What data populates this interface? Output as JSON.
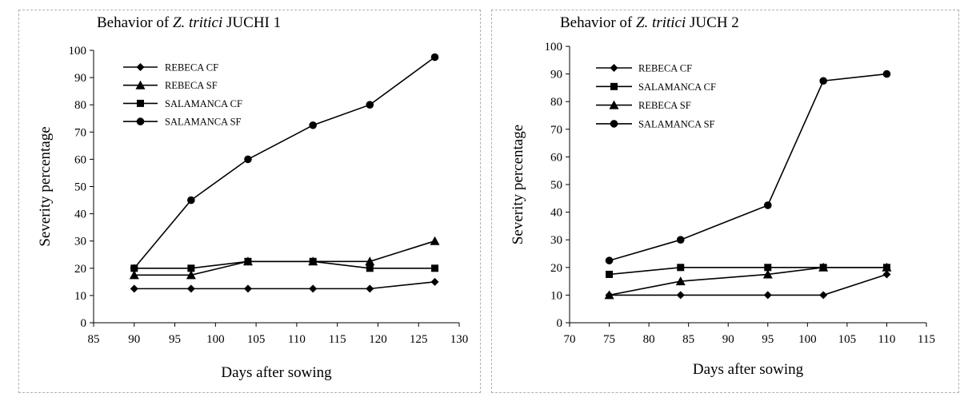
{
  "chart_data": [
    {
      "type": "line",
      "title_prefix": "Behavior of ",
      "title_italic": "Z. tritici",
      "title_suffix": " JUCHI 1",
      "xlabel": "Days after sowing",
      "ylabel": "Severity percentage",
      "xlim": [
        85,
        130
      ],
      "ylim": [
        0,
        100
      ],
      "xticks": [
        85,
        90,
        95,
        100,
        105,
        110,
        115,
        120,
        125,
        130
      ],
      "yticks": [
        0,
        10,
        20,
        30,
        40,
        50,
        60,
        70,
        80,
        90,
        100
      ],
      "grid": false,
      "legend_position": "top-left",
      "series": [
        {
          "name": "REBECA CF",
          "marker": "diamond",
          "x": [
            90,
            97,
            104,
            112,
            119,
            127
          ],
          "y": [
            12.5,
            12.5,
            12.5,
            12.5,
            12.5,
            15
          ]
        },
        {
          "name": "REBECA SF",
          "marker": "triangle",
          "x": [
            90,
            97,
            104,
            112,
            119,
            127
          ],
          "y": [
            17.5,
            17.5,
            22.5,
            22.5,
            22.5,
            30
          ]
        },
        {
          "name": "SALAMANCA CF",
          "marker": "square",
          "x": [
            90,
            97,
            104,
            112,
            119,
            127
          ],
          "y": [
            20,
            20,
            22.5,
            22.5,
            20,
            20
          ]
        },
        {
          "name": "SALAMANCA SF",
          "marker": "circle",
          "x": [
            90,
            97,
            104,
            112,
            119,
            127
          ],
          "y": [
            20,
            45,
            60,
            72.5,
            80,
            97.5
          ]
        }
      ]
    },
    {
      "type": "line",
      "title_prefix": "Behavior of ",
      "title_italic": "Z. tritici",
      "title_suffix": " JUCH 2",
      "xlabel": "Days after sowing",
      "ylabel": "Severity percentage",
      "xlim": [
        70,
        115
      ],
      "ylim": [
        0,
        100
      ],
      "xticks": [
        70,
        75,
        80,
        85,
        90,
        95,
        100,
        105,
        110,
        115
      ],
      "yticks": [
        0,
        10,
        20,
        30,
        40,
        50,
        60,
        70,
        80,
        90,
        100
      ],
      "grid": false,
      "legend_position": "top-left",
      "series": [
        {
          "name": "REBECA CF",
          "marker": "diamond",
          "x": [
            75,
            84,
            95,
            102,
            110
          ],
          "y": [
            10,
            10,
            10,
            10,
            17.5
          ]
        },
        {
          "name": "SALAMANCA CF",
          "marker": "square",
          "x": [
            75,
            84,
            95,
            102,
            110
          ],
          "y": [
            17.5,
            20,
            20,
            20,
            20
          ]
        },
        {
          "name": "REBECA SF",
          "marker": "triangle",
          "x": [
            75,
            84,
            95,
            102,
            110
          ],
          "y": [
            10,
            15,
            17.5,
            20,
            20
          ]
        },
        {
          "name": "SALAMANCA SF",
          "marker": "circle",
          "x": [
            75,
            84,
            95,
            102,
            110
          ],
          "y": [
            22.5,
            30,
            42.5,
            87.5,
            90
          ]
        }
      ]
    }
  ]
}
